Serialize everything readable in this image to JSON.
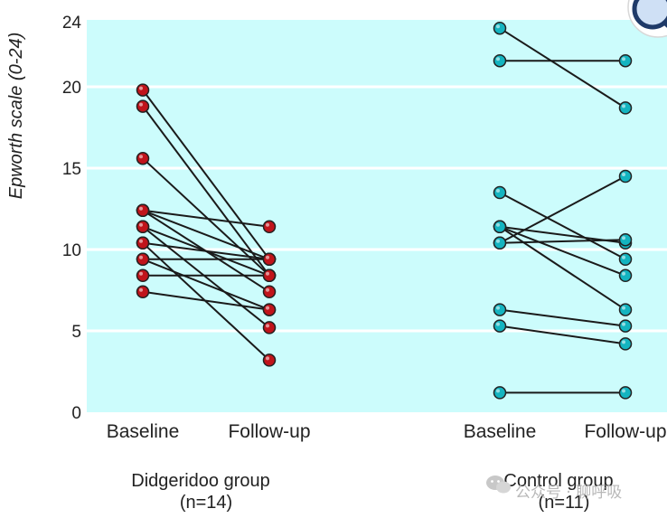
{
  "chart_data": {
    "type": "line",
    "ylabel": "Epworth scale (0-24)",
    "ylim": [
      0,
      24
    ],
    "yticks": [
      0,
      5,
      10,
      15,
      20,
      24
    ],
    "categories": [
      "Baseline",
      "Follow-up",
      "Baseline",
      "Follow-up"
    ],
    "grid": true,
    "colors": {
      "background": "#ccfcfc",
      "grid": "#ffffff",
      "line": "#1a1a1a",
      "didgeridoo_marker": "#c0141b",
      "control_marker": "#14b4c0"
    },
    "groups": [
      {
        "name": "Didgeridoo group",
        "n_label": "(n=14)",
        "marker": "didgeridoo_marker",
        "pairs": [
          [
            19.8,
            9.4
          ],
          [
            18.8,
            8.4
          ],
          [
            15.6,
            8.4
          ],
          [
            12.4,
            11.4
          ],
          [
            12.4,
            9.4
          ],
          [
            12.4,
            7.4
          ],
          [
            11.4,
            8.4
          ],
          [
            11.4,
            5.2
          ],
          [
            10.4,
            9.4
          ],
          [
            10.4,
            3.2
          ],
          [
            9.4,
            9.4
          ],
          [
            9.4,
            6.3
          ],
          [
            8.4,
            8.4
          ],
          [
            7.4,
            6.3
          ]
        ]
      },
      {
        "name": "Control group",
        "n_label": "(n=11)",
        "marker": "control_marker",
        "pairs": [
          [
            23.6,
            18.7
          ],
          [
            21.6,
            21.6
          ],
          [
            13.5,
            9.4
          ],
          [
            11.4,
            10.4
          ],
          [
            11.4,
            6.3
          ],
          [
            11.4,
            8.4
          ],
          [
            10.4,
            14.5
          ],
          [
            10.4,
            10.6
          ],
          [
            6.3,
            5.3
          ],
          [
            5.3,
            4.2
          ],
          [
            1.2,
            1.2
          ]
        ]
      }
    ]
  },
  "watermark": {
    "icon": "wechat-icon",
    "text": "公众号 · 聊呼吸"
  },
  "corner_icon": "magnifier-icon"
}
